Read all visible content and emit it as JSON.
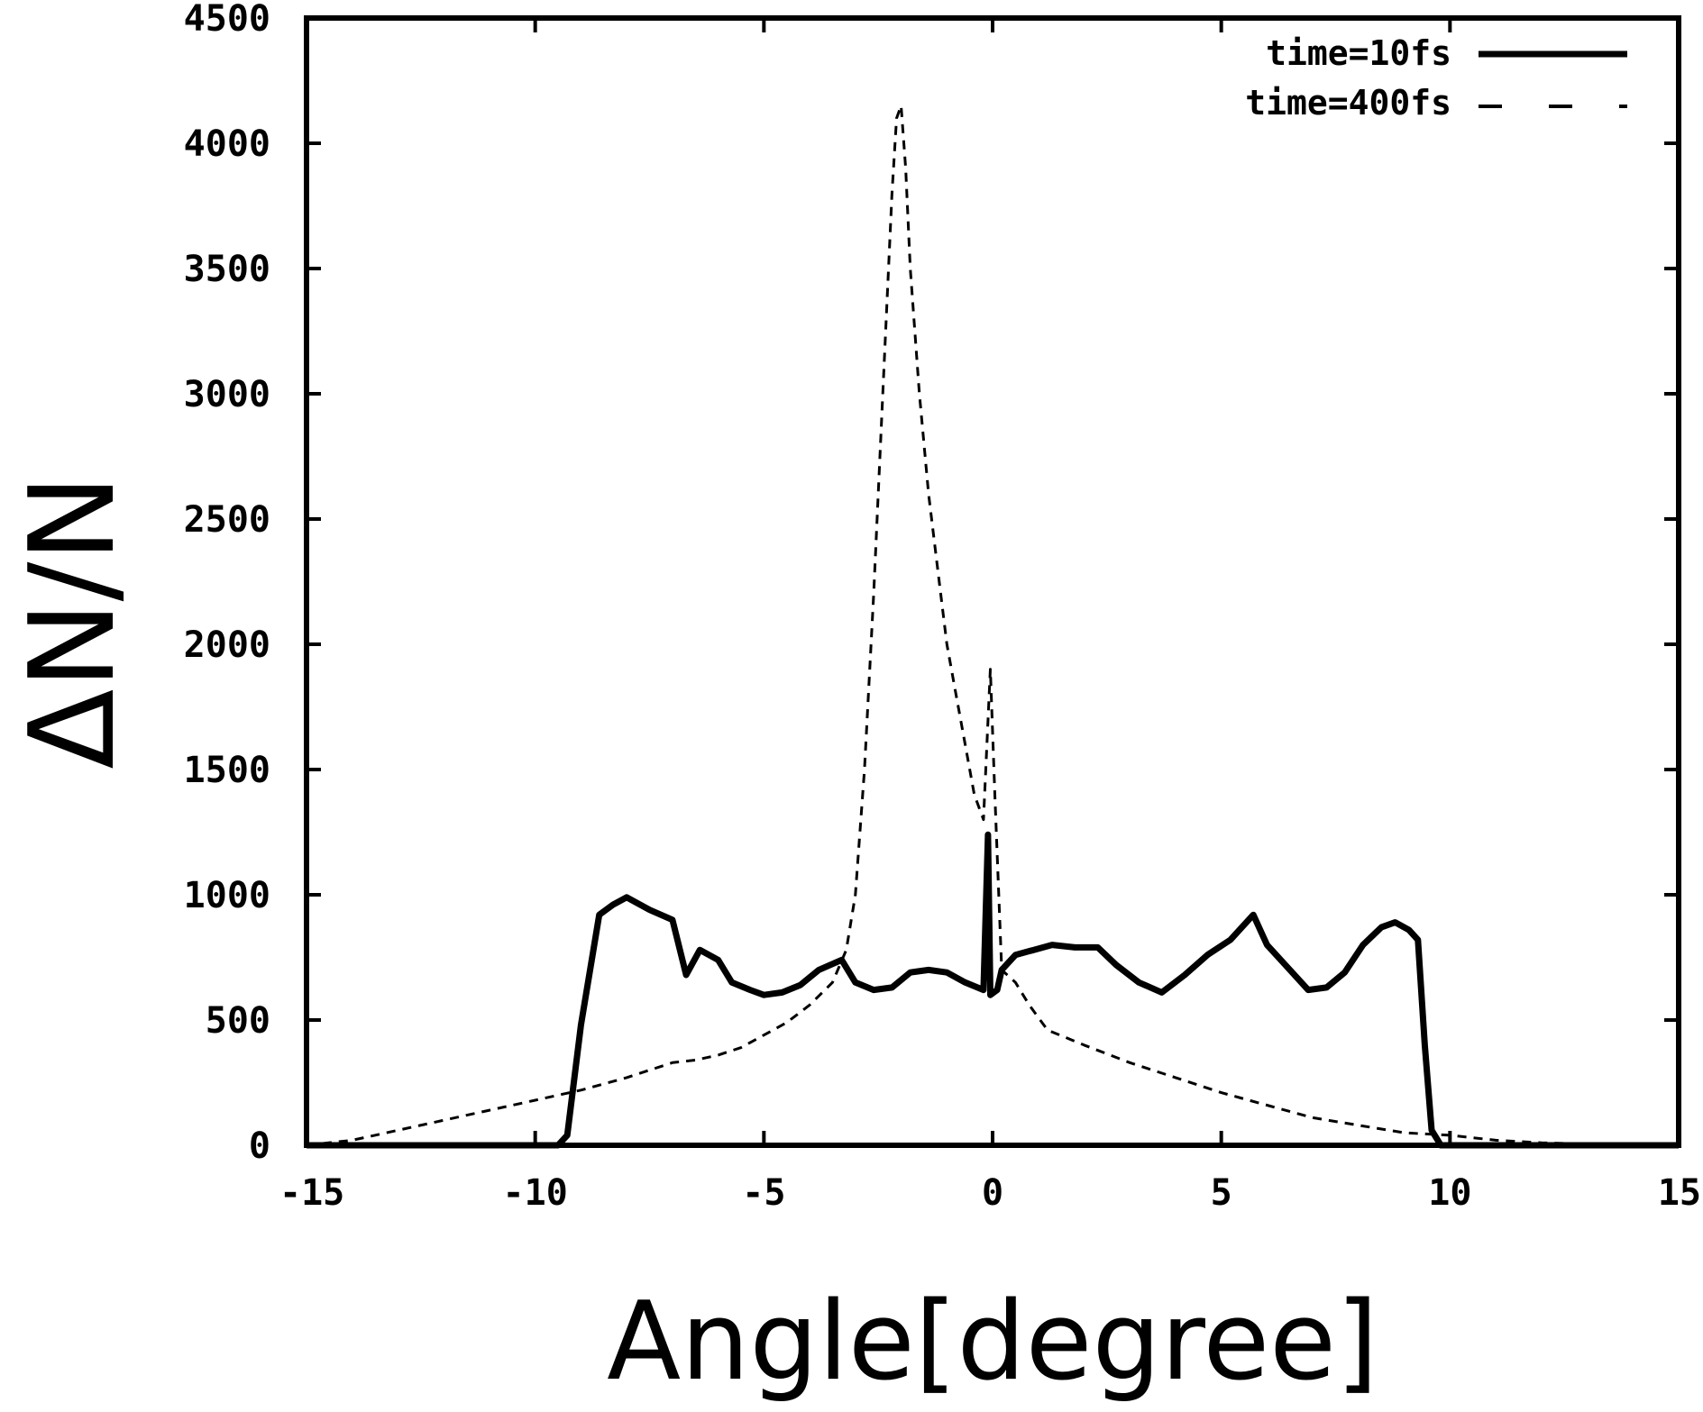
{
  "chart_data": {
    "type": "line",
    "xlabel": "Angle[degree]",
    "ylabel": "ΔN/N",
    "xlim": [
      -15,
      15
    ],
    "ylim": [
      0,
      4500
    ],
    "xticks": [
      "-15",
      "-10",
      "-5",
      "0",
      "5",
      "10",
      "15"
    ],
    "yticks": [
      "0",
      "500",
      "1000",
      "1500",
      "2000",
      "2500",
      "3000",
      "3500",
      "4000",
      "4500"
    ],
    "grid": false,
    "legend_position": "top-right",
    "series": [
      {
        "name": "time=10fs",
        "style": "solid",
        "color": "#000000",
        "x": [
          -15,
          -9.5,
          -9.3,
          -9.0,
          -8.6,
          -8.3,
          -8.0,
          -7.5,
          -7.0,
          -6.7,
          -6.4,
          -6.0,
          -5.7,
          -5.3,
          -5.0,
          -4.6,
          -4.2,
          -3.8,
          -3.3,
          -3.0,
          -2.6,
          -2.2,
          -1.8,
          -1.4,
          -1.0,
          -0.6,
          -0.2,
          -0.1,
          -0.05,
          0.1,
          0.2,
          0.5,
          0.9,
          1.3,
          1.8,
          2.3,
          2.7,
          3.2,
          3.7,
          4.2,
          4.7,
          5.2,
          5.7,
          6.0,
          6.4,
          6.9,
          7.3,
          7.7,
          8.1,
          8.5,
          8.8,
          9.1,
          9.3,
          9.45,
          9.6,
          9.8,
          10.5,
          15
        ],
        "y": [
          0,
          0,
          40,
          480,
          920,
          960,
          990,
          940,
          900,
          680,
          780,
          740,
          650,
          620,
          600,
          610,
          640,
          700,
          740,
          650,
          620,
          630,
          690,
          700,
          690,
          650,
          620,
          1240,
          600,
          620,
          700,
          760,
          780,
          800,
          790,
          790,
          720,
          650,
          610,
          680,
          760,
          820,
          920,
          800,
          720,
          620,
          630,
          690,
          800,
          870,
          890,
          860,
          820,
          400,
          60,
          0,
          0,
          0
        ]
      },
      {
        "name": "time=400fs",
        "style": "dashed",
        "color": "#000000",
        "x": [
          -15,
          -14,
          -13,
          -12,
          -11,
          -10,
          -9,
          -8,
          -7.5,
          -7,
          -6.5,
          -6,
          -5.5,
          -5,
          -4.5,
          -4,
          -3.5,
          -3.2,
          -3.0,
          -2.8,
          -2.6,
          -2.4,
          -2.2,
          -2.1,
          -2.0,
          -1.9,
          -1.8,
          -1.6,
          -1.4,
          -1.2,
          -1.0,
          -0.8,
          -0.6,
          -0.4,
          -0.2,
          -0.05,
          0.05,
          0.2,
          0.5,
          0.8,
          1.2,
          2,
          3,
          4,
          5,
          6,
          7,
          8,
          9,
          10,
          11,
          12,
          13,
          14,
          15
        ],
        "y": [
          0,
          20,
          60,
          100,
          140,
          180,
          220,
          270,
          300,
          330,
          340,
          360,
          390,
          440,
          490,
          560,
          650,
          780,
          1000,
          1500,
          2200,
          3000,
          3800,
          4100,
          4150,
          3900,
          3500,
          3000,
          2600,
          2300,
          2000,
          1800,
          1600,
          1400,
          1300,
          1900,
          1400,
          700,
          650,
          560,
          460,
          400,
          330,
          270,
          210,
          160,
          110,
          80,
          50,
          40,
          20,
          10,
          5,
          0,
          0
        ]
      }
    ]
  }
}
